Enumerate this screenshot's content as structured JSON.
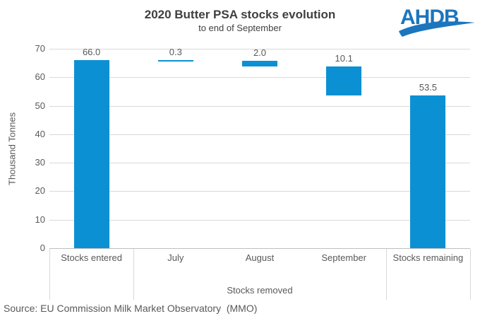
{
  "chart": {
    "title": "2020 Butter PSA stocks evolution",
    "subtitle": "to end of September",
    "ylabel": "Thousand Tonnes"
  },
  "logo": {
    "text": "AHDB",
    "color": "#1b76bd"
  },
  "source": {
    "text": "Source: EU Commission Milk Market Observatory  (MMO)"
  },
  "chart_data": {
    "type": "bar",
    "subtype": "waterfall",
    "title": "2020 Butter PSA stocks evolution",
    "subtitle": "to end of September",
    "xlabel": "",
    "ylabel": "Thousand Tonnes",
    "ylim": [
      0,
      70
    ],
    "yticks": [
      0,
      10,
      20,
      30,
      40,
      50,
      60,
      70
    ],
    "grid": true,
    "legend": "none",
    "categories": [
      "Stocks entered",
      "July",
      "August",
      "September",
      "Stocks remaining"
    ],
    "values": [
      66.0,
      0.3,
      2.0,
      10.1,
      53.5
    ],
    "data_labels": [
      "66.0",
      "0.3",
      "2.0",
      "10.1",
      "53.5"
    ],
    "bar_segments": [
      [
        0,
        66.0
      ],
      [
        65.7,
        66.0
      ],
      [
        63.7,
        65.7
      ],
      [
        53.6,
        63.7
      ],
      [
        0,
        53.5
      ]
    ],
    "group_label": "Stocks removed",
    "group_categories": [
      "July",
      "August",
      "September"
    ],
    "bar_color": "#0b90d4",
    "gridline_color": "#d9d9d9",
    "axis_line_color": "#bfbfbf",
    "divider_color": "#d9d9d9",
    "label_color": "#595959"
  }
}
